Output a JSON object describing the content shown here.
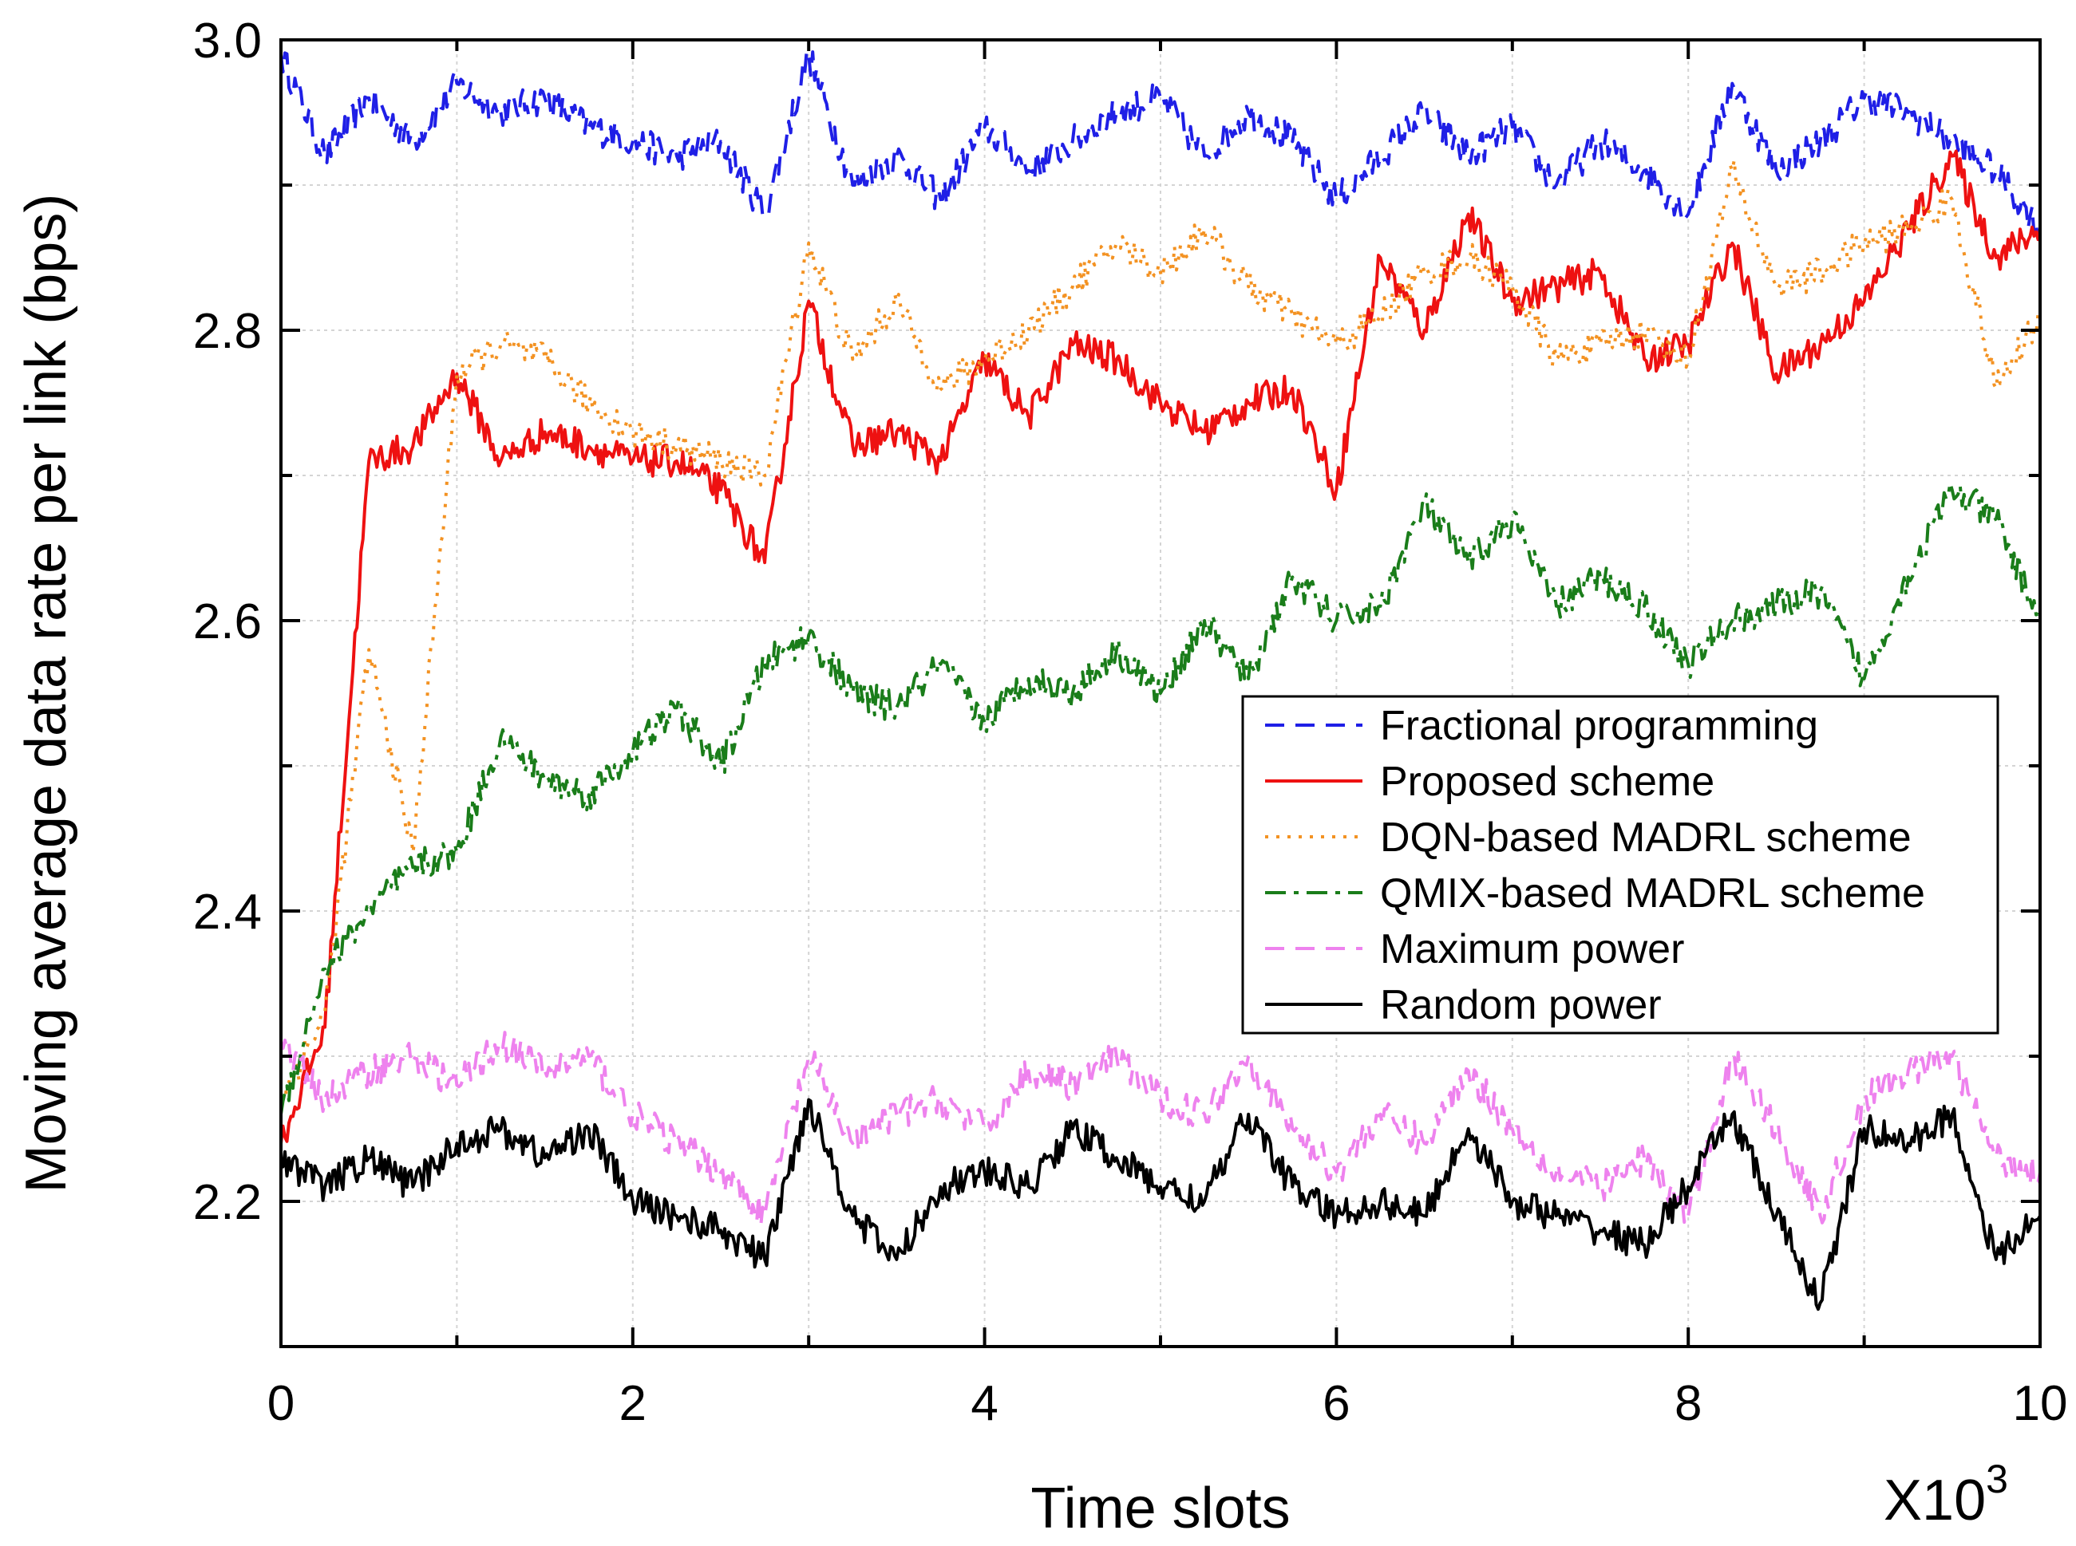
{
  "chart_data": {
    "type": "line",
    "title": "",
    "xlabel": "Time slots",
    "ylabel": "Moving average data rate per link (bps)",
    "x_multiplier": "X10",
    "x_multiplier_exp": "3",
    "xlim": [
      0,
      10
    ],
    "ylim": [
      2.1,
      3.0
    ],
    "xticks": [
      0,
      2,
      4,
      6,
      8,
      10
    ],
    "xtick_labels": [
      "0",
      "2",
      "4",
      "6",
      "8",
      "10"
    ],
    "yticks": [
      2.2,
      2.4,
      2.6,
      2.8,
      3.0
    ],
    "ytick_labels": [
      "2.2",
      "2.4",
      "2.6",
      "2.8",
      "3.0"
    ],
    "grid": true,
    "legend_position": "center-right",
    "x": [
      0,
      0.25,
      0.5,
      0.75,
      1.0,
      1.25,
      1.5,
      1.75,
      2.0,
      2.25,
      2.5,
      2.75,
      3.0,
      3.25,
      3.5,
      3.75,
      4.0,
      4.25,
      4.5,
      4.75,
      5.0,
      5.25,
      5.5,
      5.75,
      6.0,
      6.25,
      6.5,
      6.75,
      7.0,
      7.25,
      7.5,
      7.75,
      8.0,
      8.25,
      8.5,
      8.75,
      9.0,
      9.25,
      9.5,
      9.75,
      10.0
    ],
    "series": [
      {
        "name": "Fractional programming",
        "color": "#1f1fe6",
        "dash": "dash",
        "values": [
          2.99,
          2.92,
          2.96,
          2.93,
          2.97,
          2.95,
          2.96,
          2.94,
          2.93,
          2.92,
          2.93,
          2.88,
          2.99,
          2.9,
          2.92,
          2.89,
          2.94,
          2.91,
          2.93,
          2.95,
          2.96,
          2.92,
          2.95,
          2.93,
          2.89,
          2.92,
          2.95,
          2.92,
          2.94,
          2.9,
          2.93,
          2.91,
          2.88,
          2.97,
          2.91,
          2.93,
          2.96,
          2.95,
          2.93,
          2.91,
          2.87
        ]
      },
      {
        "name": "Proposed scheme",
        "color": "#ee1111",
        "dash": "solid",
        "values": [
          2.24,
          2.32,
          2.71,
          2.72,
          2.77,
          2.71,
          2.73,
          2.72,
          2.71,
          2.71,
          2.69,
          2.64,
          2.82,
          2.72,
          2.73,
          2.71,
          2.78,
          2.74,
          2.79,
          2.78,
          2.75,
          2.73,
          2.75,
          2.76,
          2.69,
          2.85,
          2.8,
          2.88,
          2.82,
          2.83,
          2.84,
          2.78,
          2.79,
          2.86,
          2.77,
          2.79,
          2.82,
          2.87,
          2.92,
          2.85,
          2.87
        ]
      },
      {
        "name": "DQN-based MADRL scheme",
        "color": "#f39222",
        "dash": "dot",
        "values": [
          2.27,
          2.33,
          2.58,
          2.44,
          2.77,
          2.79,
          2.78,
          2.75,
          2.73,
          2.72,
          2.71,
          2.7,
          2.86,
          2.78,
          2.82,
          2.76,
          2.78,
          2.8,
          2.83,
          2.86,
          2.84,
          2.87,
          2.83,
          2.81,
          2.79,
          2.81,
          2.84,
          2.85,
          2.83,
          2.78,
          2.79,
          2.8,
          2.78,
          2.91,
          2.83,
          2.84,
          2.86,
          2.87,
          2.89,
          2.76,
          2.81
        ]
      },
      {
        "name": "QMIX-based MADRL scheme",
        "color": "#1a7d1a",
        "dash": "dashdot",
        "values": [
          2.26,
          2.36,
          2.4,
          2.43,
          2.44,
          2.52,
          2.49,
          2.48,
          2.51,
          2.54,
          2.5,
          2.57,
          2.59,
          2.55,
          2.54,
          2.57,
          2.53,
          2.56,
          2.55,
          2.58,
          2.55,
          2.6,
          2.56,
          2.63,
          2.6,
          2.61,
          2.68,
          2.64,
          2.67,
          2.61,
          2.63,
          2.61,
          2.57,
          2.6,
          2.61,
          2.62,
          2.56,
          2.63,
          2.69,
          2.67,
          2.6
        ]
      },
      {
        "name": "Maximum power",
        "color": "#ee82ee",
        "dash": "dash",
        "values": [
          2.31,
          2.27,
          2.29,
          2.3,
          2.28,
          2.31,
          2.29,
          2.3,
          2.26,
          2.24,
          2.22,
          2.19,
          2.3,
          2.24,
          2.26,
          2.27,
          2.25,
          2.29,
          2.28,
          2.3,
          2.27,
          2.26,
          2.3,
          2.25,
          2.22,
          2.26,
          2.24,
          2.29,
          2.25,
          2.22,
          2.21,
          2.23,
          2.19,
          2.3,
          2.25,
          2.19,
          2.27,
          2.29,
          2.3,
          2.23,
          2.22
        ]
      },
      {
        "name": "Random power",
        "color": "#000000",
        "dash": "solid",
        "values": [
          2.23,
          2.21,
          2.23,
          2.21,
          2.24,
          2.25,
          2.23,
          2.25,
          2.2,
          2.19,
          2.18,
          2.16,
          2.27,
          2.19,
          2.16,
          2.21,
          2.22,
          2.21,
          2.25,
          2.23,
          2.21,
          2.2,
          2.26,
          2.21,
          2.19,
          2.2,
          2.19,
          2.25,
          2.2,
          2.19,
          2.18,
          2.17,
          2.21,
          2.26,
          2.19,
          2.13,
          2.25,
          2.24,
          2.26,
          2.16,
          2.19
        ]
      }
    ]
  }
}
